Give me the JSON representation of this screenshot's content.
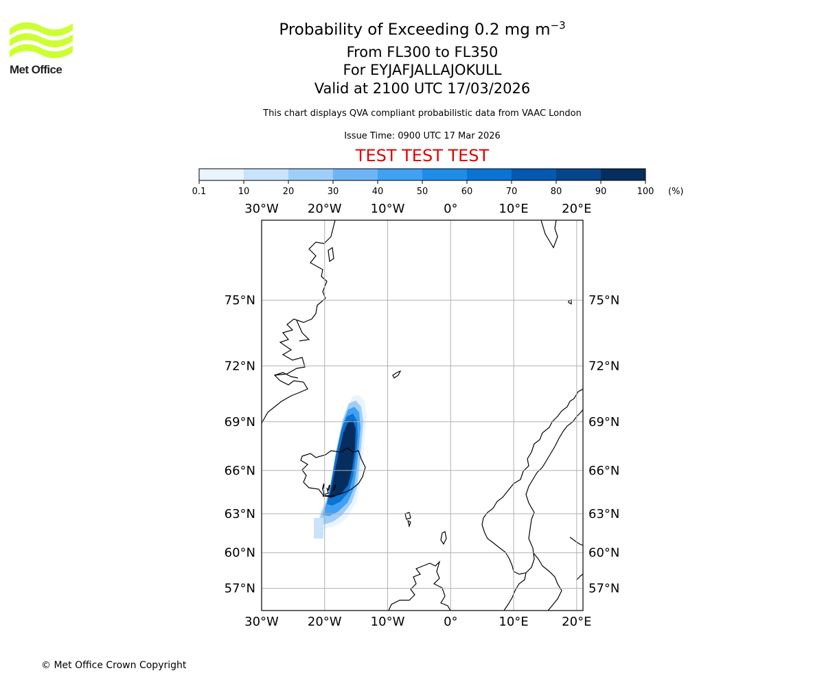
{
  "logo": {
    "text": "Met Office",
    "color": "#ccff33"
  },
  "title": {
    "main": "Probability of Exceeding 0.2 mg m",
    "main_superscript": "−3",
    "level": "From FL300 to FL350",
    "volcano": "For EYJAFJALLAJOKULL",
    "valid": "Valid at 2100 UTC 17/03/2026"
  },
  "subtitle": "This chart displays QVA compliant probabilistic data from VAAC London",
  "issue_time": "Issue Time: 0900 UTC 17 Mar 2026",
  "test_banner": "TEST TEST TEST",
  "test_banner_color": "#e00000",
  "colorbar": {
    "ticks": [
      "0.1",
      "10",
      "20",
      "30",
      "40",
      "50",
      "60",
      "70",
      "80",
      "90",
      "100"
    ],
    "unit": "(%)",
    "colors": [
      "#eaf4fe",
      "#c9e3fb",
      "#9fcef8",
      "#6fb5f5",
      "#40a0f2",
      "#1f8de8",
      "#0b73d1",
      "#0559b0",
      "#06458a",
      "#052e5e"
    ]
  },
  "map": {
    "lon_labels": [
      "30°W",
      "20°W",
      "10°W",
      "0°",
      "10°E",
      "20°E"
    ],
    "lat_labels": [
      "75°N",
      "72°N",
      "69°N",
      "66°N",
      "63°N",
      "60°N",
      "57°N"
    ],
    "lon_values": [
      -30,
      -20,
      -10,
      0,
      10,
      20
    ],
    "lat_values": [
      75,
      72,
      69,
      66,
      63,
      60,
      57
    ],
    "extent": {
      "lon_min": -30,
      "lon_max": 21,
      "lat_min": 55,
      "lat_max": 78
    },
    "gridlines": true,
    "ash_probability_max": 100
  },
  "copyright": "© Met Office Crown Copyright"
}
